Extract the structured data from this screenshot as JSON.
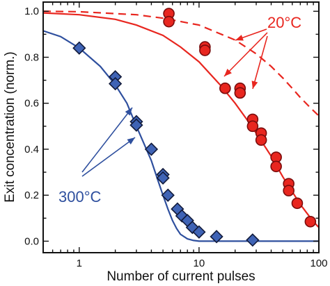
{
  "chart_data": {
    "type": "scatter",
    "title": "",
    "xlabel": "Number of current pulses",
    "ylabel": "Exit concentration (norm.)",
    "x_scale": "log",
    "xlim": [
      0.5,
      100
    ],
    "ylim": [
      -0.05,
      1.04
    ],
    "x_ticks": [
      1,
      10,
      100
    ],
    "x_tick_labels": [
      "1",
      "10",
      "100"
    ],
    "y_ticks": [
      0.0,
      0.2,
      0.4,
      0.6,
      0.8,
      1.0
    ],
    "y_tick_labels": [
      "0.0",
      "0.2",
      "0.4",
      "0.6",
      "0.8",
      "1.0"
    ],
    "grid": false,
    "legend": "none",
    "colors": {
      "red": "#e8261f",
      "red_edge": "#7a0c0c",
      "blue": "#2e4f9e",
      "blue_fill": "#3f63b5",
      "blue_edge": "#111a3a"
    },
    "series": [
      {
        "color_key": "red",
        "marker": "circle",
        "points": [
          [
            5.6,
            0.99
          ],
          [
            5.6,
            0.955
          ],
          [
            11.2,
            0.845
          ],
          [
            11.2,
            0.83
          ],
          [
            16.5,
            0.665
          ],
          [
            22,
            0.665
          ],
          [
            22,
            0.645
          ],
          [
            28,
            0.53
          ],
          [
            28,
            0.5
          ],
          [
            33,
            0.47
          ],
          [
            33,
            0.44
          ],
          [
            44,
            0.365
          ],
          [
            44,
            0.325
          ],
          [
            56,
            0.25
          ],
          [
            56,
            0.22
          ],
          [
            66,
            0.165
          ],
          [
            85,
            0.085
          ]
        ]
      },
      {
        "color_key": "blue",
        "marker": "diamond",
        "points": [
          [
            1.0,
            0.84
          ],
          [
            2.0,
            0.715
          ],
          [
            2.0,
            0.685
          ],
          [
            3.0,
            0.52
          ],
          [
            3.0,
            0.505
          ],
          [
            4.0,
            0.4
          ],
          [
            5.0,
            0.29
          ],
          [
            5.0,
            0.275
          ],
          [
            5.5,
            0.2
          ],
          [
            6.6,
            0.14
          ],
          [
            7.2,
            0.11
          ],
          [
            8.0,
            0.09
          ],
          [
            8.8,
            0.06
          ],
          [
            10.0,
            0.04
          ],
          [
            14.0,
            0.02
          ],
          [
            28.0,
            0.005
          ]
        ]
      }
    ],
    "curves": [
      {
        "color_key": "red",
        "style": "solid",
        "points": [
          [
            0.5,
            0.993
          ],
          [
            1,
            0.985
          ],
          [
            2,
            0.965
          ],
          [
            3,
            0.94
          ],
          [
            5,
            0.895
          ],
          [
            7,
            0.845
          ],
          [
            10,
            0.78
          ],
          [
            15,
            0.68
          ],
          [
            20,
            0.6
          ],
          [
            25,
            0.53
          ],
          [
            30,
            0.47
          ],
          [
            40,
            0.37
          ],
          [
            50,
            0.28
          ],
          [
            60,
            0.215
          ],
          [
            70,
            0.16
          ],
          [
            80,
            0.12
          ],
          [
            90,
            0.085
          ],
          [
            100,
            0.06
          ]
        ]
      },
      {
        "color_key": "red",
        "style": "dashed",
        "points": [
          [
            0.5,
            1.0
          ],
          [
            1,
            0.998
          ],
          [
            3,
            0.985
          ],
          [
            5,
            0.97
          ],
          [
            10,
            0.94
          ],
          [
            20,
            0.875
          ],
          [
            30,
            0.815
          ],
          [
            40,
            0.76
          ],
          [
            50,
            0.71
          ],
          [
            60,
            0.665
          ],
          [
            70,
            0.625
          ],
          [
            85,
            0.58
          ],
          [
            100,
            0.545
          ]
        ]
      },
      {
        "color_key": "blue",
        "style": "solid",
        "points": [
          [
            0.5,
            0.915
          ],
          [
            0.7,
            0.89
          ],
          [
            1,
            0.84
          ],
          [
            1.5,
            0.76
          ],
          [
            2,
            0.68
          ],
          [
            2.5,
            0.6
          ],
          [
            3,
            0.5
          ],
          [
            3.5,
            0.42
          ],
          [
            4,
            0.35
          ],
          [
            4.5,
            0.27
          ],
          [
            5,
            0.2
          ],
          [
            5.5,
            0.14
          ],
          [
            6,
            0.09
          ],
          [
            6.5,
            0.055
          ],
          [
            7,
            0.03
          ],
          [
            8,
            0.01
          ],
          [
            9,
            0.003
          ],
          [
            10,
            0.0
          ],
          [
            100,
            0.0
          ]
        ]
      }
    ],
    "annotations": [
      {
        "text": "20°C",
        "color_key": "red"
      },
      {
        "text": "300°C",
        "color_key": "blue"
      }
    ]
  }
}
